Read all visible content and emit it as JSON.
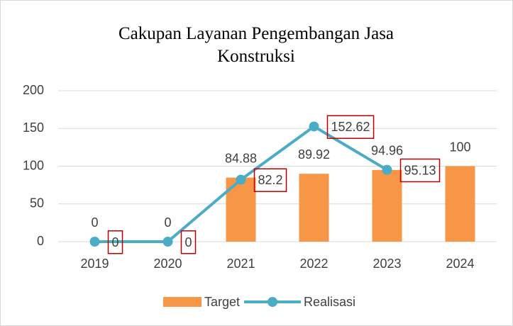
{
  "chart_data": {
    "type": "combo",
    "title": "Cakupan Layanan Pengembangan Jasa Konstruksi",
    "categories": [
      "2019",
      "2020",
      "2021",
      "2022",
      "2023",
      "2024"
    ],
    "series": [
      {
        "name": "Target",
        "type": "bar",
        "color": "#f79646",
        "values": [
          0,
          0,
          84.88,
          89.92,
          94.96,
          100
        ]
      },
      {
        "name": "Realisasi",
        "type": "line",
        "color": "#4bacc6",
        "values": [
          0,
          0,
          82.2,
          152.62,
          95.13,
          null
        ]
      }
    ],
    "ylim": [
      0,
      200
    ],
    "yticks": [
      0,
      50,
      100,
      150,
      200
    ],
    "grid": true,
    "legend": "bottom"
  }
}
